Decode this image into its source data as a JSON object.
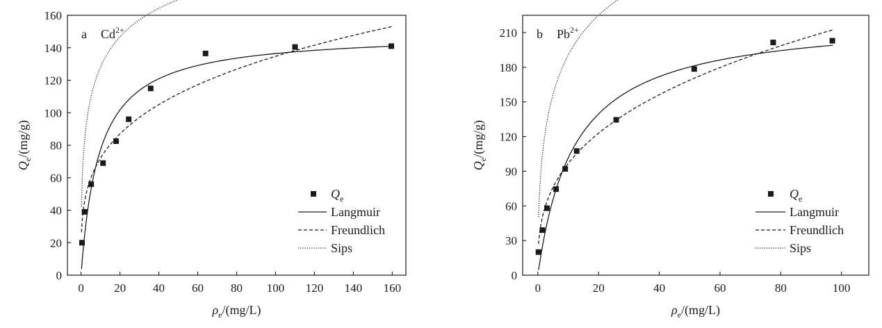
{
  "chart_data": [
    {
      "type": "scatter",
      "panel_label": "a",
      "ion": "Cd",
      "ion_charge": "2+",
      "xlabel": {
        "symbol": "ρ",
        "sub": "e",
        "unit": "/(mg/L)"
      },
      "ylabel": {
        "symbol": "Q",
        "sub": "e",
        "unit": "/(mg/g)"
      },
      "xlim": [
        -7,
        167
      ],
      "ylim": [
        0,
        160
      ],
      "xticks": [
        0,
        20,
        40,
        60,
        80,
        100,
        120,
        140,
        160
      ],
      "yticks": [
        0,
        20,
        40,
        60,
        80,
        100,
        120,
        140,
        160
      ],
      "grid": false,
      "legend_position": "bottom-right",
      "series": [
        {
          "name": "Q",
          "name_sub": "e",
          "kind": "points",
          "x": [
            0.5,
            1.8,
            5.2,
            11.3,
            18.0,
            24.5,
            35.8,
            64.0,
            110.0,
            159.5
          ],
          "y": [
            20,
            39,
            56,
            69,
            82.5,
            96,
            115,
            136.5,
            140.5,
            141
          ]
        },
        {
          "name": "Langmuir",
          "kind": "curve",
          "model": "langmuir",
          "params": {
            "qm": 149.2,
            "k": 0.107
          },
          "style": "solid"
        },
        {
          "name": "Freundlich",
          "kind": "curve",
          "model": "freundlich",
          "params": {
            "k": 38.5,
            "n": 0.272
          },
          "style": "dashed"
        },
        {
          "name": "Sips",
          "kind": "curve",
          "model": "sips",
          "params": {
            "qm": 244,
            "k": 0.1247,
            "n": 0.45
          },
          "style": "dotted"
        }
      ]
    },
    {
      "type": "scatter",
      "panel_label": "b",
      "ion": "Pb",
      "ion_charge": "2+",
      "xlabel": {
        "symbol": "ρ",
        "sub": "e",
        "unit": "/(mg/L)"
      },
      "ylabel": {
        "symbol": "Q",
        "sub": "e",
        "unit": "/(mg/g)"
      },
      "xlim": [
        -5,
        109
      ],
      "ylim": [
        0,
        225
      ],
      "xticks": [
        0,
        20,
        40,
        60,
        80,
        100
      ],
      "yticks": [
        0,
        30,
        60,
        90,
        120,
        150,
        180,
        210
      ],
      "grid": false,
      "legend_position": "bottom-right",
      "series": [
        {
          "name": "Q",
          "name_sub": "e",
          "kind": "points",
          "x": [
            0.2,
            1.5,
            3.0,
            6.0,
            9.0,
            12.8,
            25.8,
            51.5,
            77.5,
            97.0
          ],
          "y": [
            20,
            39,
            58,
            74.5,
            92,
            107.5,
            134.5,
            178.5,
            201.5,
            203
          ]
        },
        {
          "name": "Langmuir",
          "kind": "curve",
          "model": "langmuir",
          "params": {
            "qm": 223.7,
            "k": 0.083
          },
          "style": "solid"
        },
        {
          "name": "Freundlich",
          "kind": "curve",
          "model": "freundlich",
          "params": {
            "k": 43.6,
            "n": 0.346
          },
          "style": "dashed"
        },
        {
          "name": "Sips",
          "kind": "curve",
          "model": "sips",
          "params": {
            "qm": 400,
            "k": 0.0827,
            "n": 0.5
          },
          "style": "dotted"
        }
      ]
    }
  ]
}
